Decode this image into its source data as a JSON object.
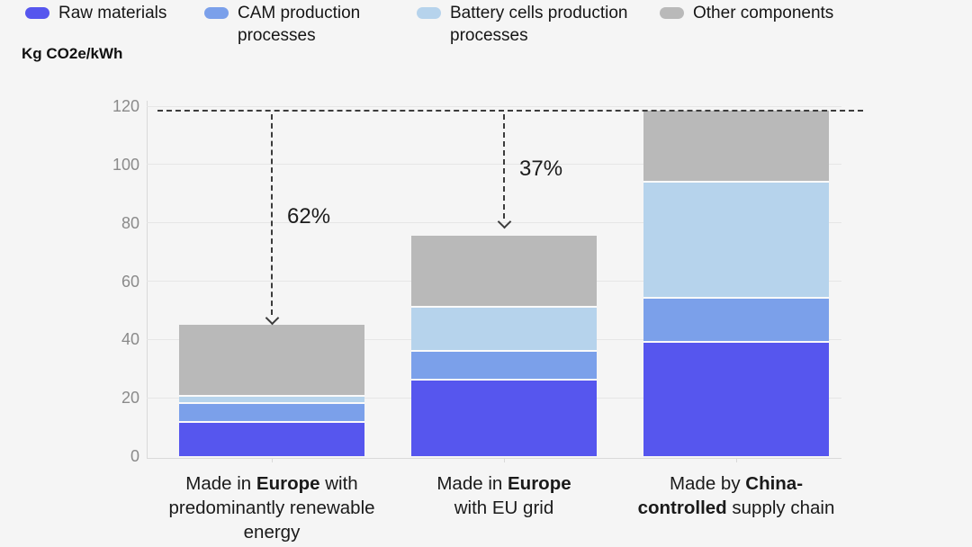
{
  "y_axis_title": "Kg CO2e/kWh",
  "colors": {
    "background": "#f5f5f5",
    "gridline": "#e6e6e6",
    "axis_line": "#d9d9d9",
    "tick_text": "#8a8a8a",
    "label_text": "#1a1a1a",
    "annotation_dash": "#3c3c3c",
    "segment_separator": "#fafafa"
  },
  "legend": {
    "items": [
      {
        "label": "Raw materials",
        "color": "#5656ee"
      },
      {
        "label": "CAM production processes",
        "color": "#7ba0ea"
      },
      {
        "label": "Battery cells production processes",
        "color": "#b6d3ec"
      },
      {
        "label": "Other components",
        "color": "#b9b9b9"
      }
    ]
  },
  "chart_data": {
    "type": "bar",
    "stacked": true,
    "ylabel": "Kg CO2e/kWh",
    "ylim": [
      0,
      120
    ],
    "yticks": [
      0,
      20,
      40,
      60,
      80,
      100,
      120
    ],
    "grid": true,
    "legend_position": "top",
    "categories_text": [
      "Made in Europe with predominantly renewable energy",
      "Made in Europe with EU grid",
      "Made by China-controlled supply chain"
    ],
    "categories_rich": [
      [
        [
          {
            "t": "Made in "
          },
          {
            "t": "Europe",
            "b": true
          },
          {
            "t": " with"
          }
        ],
        [
          {
            "t": "predominantly renewable"
          }
        ],
        [
          {
            "t": "energy"
          }
        ]
      ],
      [
        [
          {
            "t": "Made in "
          },
          {
            "t": "Europe",
            "b": true
          }
        ],
        [
          {
            "t": "with EU grid"
          }
        ]
      ],
      [
        [
          {
            "t": "Made by "
          },
          {
            "t": "China-",
            "b": true
          }
        ],
        [
          {
            "t": "controlled",
            "b": true
          },
          {
            "t": " supply chain"
          }
        ]
      ]
    ],
    "series": [
      {
        "name": "Raw materials",
        "color": "#5656ee",
        "values": [
          12,
          26.5,
          39.5
        ]
      },
      {
        "name": "CAM production processes",
        "color": "#7ba0ea",
        "values": [
          6.5,
          10,
          15
        ]
      },
      {
        "name": "Battery cells production processes",
        "color": "#b6d3ec",
        "values": [
          2.5,
          15,
          40
        ]
      },
      {
        "name": "Other components",
        "color": "#b9b9b9",
        "values": [
          24,
          24,
          24
        ]
      }
    ],
    "totals": [
      45,
      75.5,
      118.5
    ],
    "reference_line_value": 118.5,
    "annotations": [
      {
        "label": "62%",
        "bar_index": 0,
        "arrow_tip_value": 46,
        "label_center_value": 82
      },
      {
        "label": "37%",
        "bar_index": 1,
        "arrow_tip_value": 79,
        "label_center_value": 98.5
      }
    ]
  }
}
